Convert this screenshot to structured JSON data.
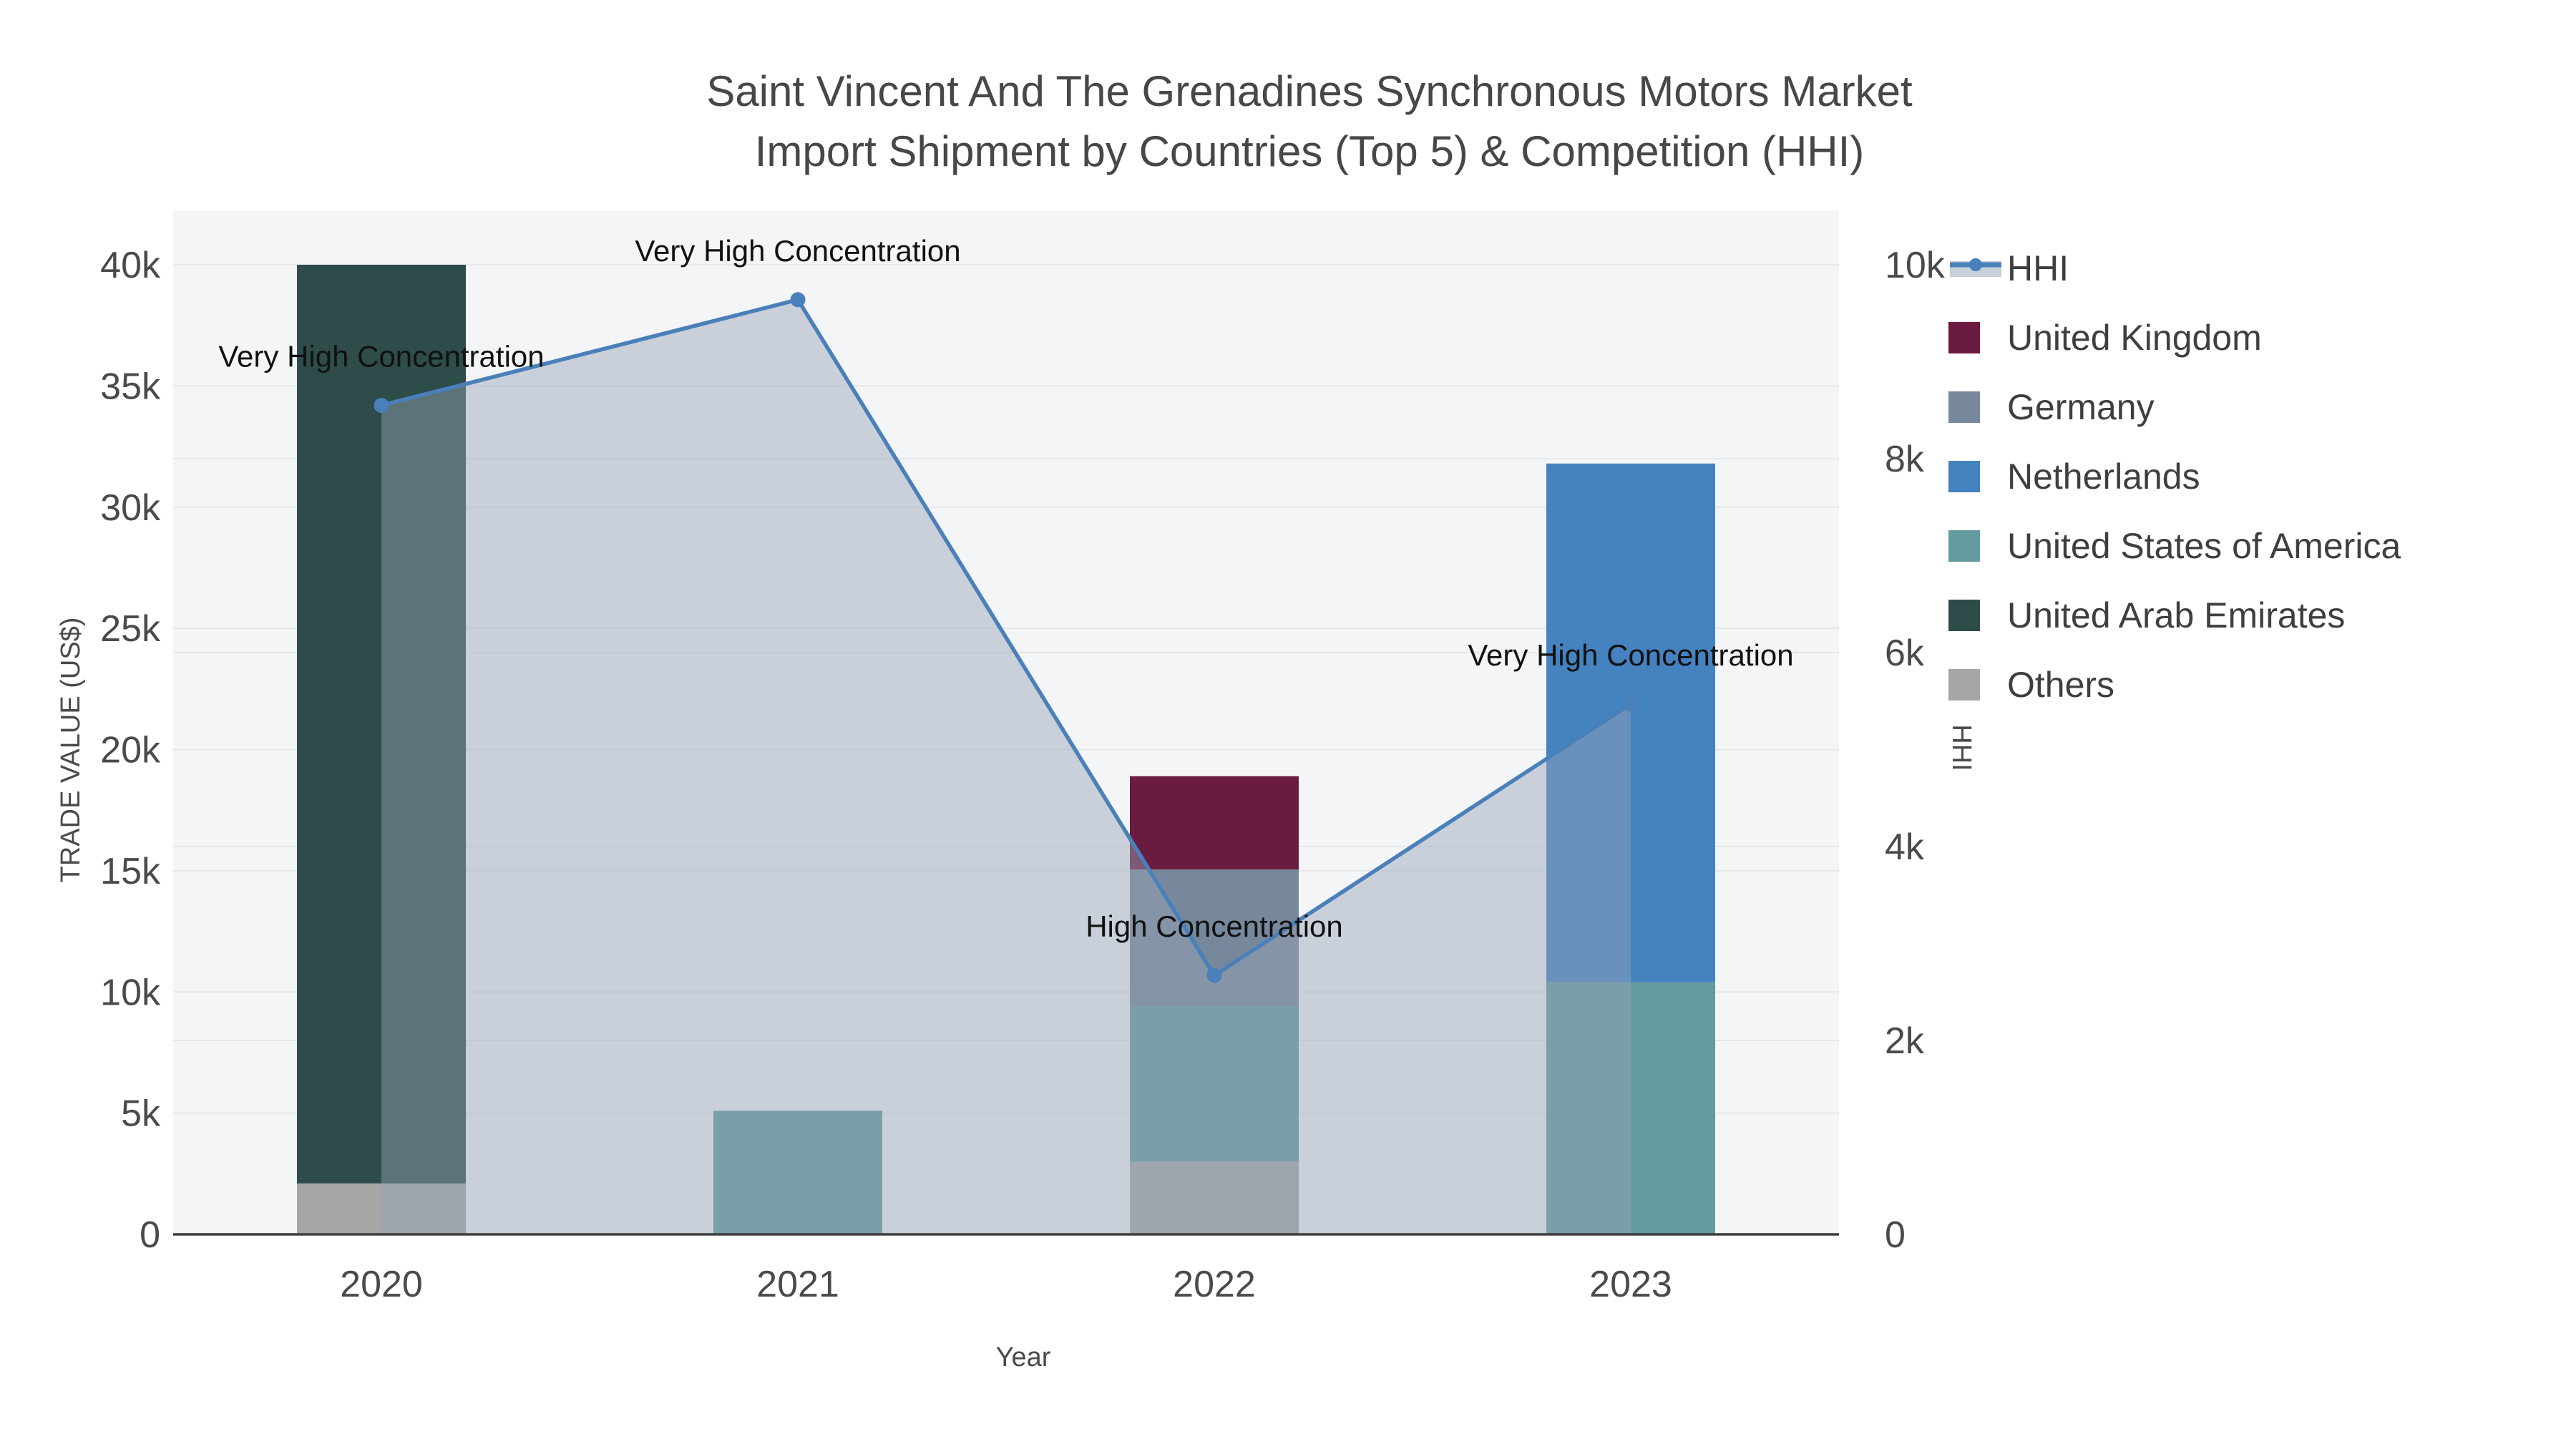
{
  "title": {
    "line1": "Saint Vincent And The Grenadines Synchronous Motors Market",
    "line2": "Import Shipment by Countries (Top 5) & Competition (HHI)"
  },
  "axis_titles": {
    "x": "Year",
    "y_left": "TRADE VALUE (US$)",
    "y_right": "HHI"
  },
  "legend": {
    "items": [
      {
        "label": "HHI",
        "color": "#4a80ba",
        "swatch": "line"
      },
      {
        "label": "United Kingdom",
        "color": "#6a1c40",
        "swatch": "square"
      },
      {
        "label": "Germany",
        "color": "#77889c",
        "swatch": "square"
      },
      {
        "label": "Netherlands",
        "color": "#4582c0",
        "swatch": "square"
      },
      {
        "label": "United States of America",
        "color": "#639b9e",
        "swatch": "square"
      },
      {
        "label": "United Arab Emirates",
        "color": "#2d4c4a",
        "swatch": "square"
      },
      {
        "label": "Others",
        "color": "#a6a6a6",
        "swatch": "square"
      }
    ]
  },
  "chart_data": {
    "type": "combo-stacked-bar-line",
    "title": "Saint Vincent And The Grenadines Synchronous Motors Market Import Shipment by Countries (Top 5) & Competition (HHI)",
    "categories": [
      "2020",
      "2021",
      "2022",
      "2023"
    ],
    "bar_series": [
      {
        "name": "Others",
        "color": "#a6a6a6",
        "values": [
          2100,
          0,
          3000,
          0
        ]
      },
      {
        "name": "United States of America",
        "color": "#639b9e",
        "values": [
          0,
          5100,
          6400,
          10400
        ]
      },
      {
        "name": "Germany",
        "color": "#77889c",
        "values": [
          0,
          0,
          5650,
          0
        ]
      },
      {
        "name": "United Kingdom",
        "color": "#6a1c40",
        "values": [
          0,
          0,
          3850,
          0
        ]
      },
      {
        "name": "Netherlands",
        "color": "#4582c0",
        "values": [
          0,
          0,
          0,
          21400
        ]
      },
      {
        "name": "United Arab Emirates",
        "color": "#2d4c4a",
        "values": [
          37900,
          0,
          0,
          0
        ]
      }
    ],
    "bar_totals": [
      40000,
      5100,
      18900,
      31800
    ],
    "line_series": {
      "name": "HHI",
      "color": "#4a80ba",
      "fill_color": "rgba(150,163,182,0.45)",
      "values": [
        8550,
        9640,
        2670,
        5470
      ],
      "axis": "right"
    },
    "annotations": [
      {
        "x": "2020",
        "text": "Very High Concentration"
      },
      {
        "x": "2021",
        "text": "Very High Concentration"
      },
      {
        "x": "2022",
        "text": "High Concentration"
      },
      {
        "x": "2023",
        "text": "Very High Concentration"
      }
    ],
    "left_axis": {
      "title": "TRADE VALUE (US$)",
      "range": [
        0,
        40000
      ],
      "tick_values": [
        0,
        5000,
        10000,
        15000,
        20000,
        25000,
        30000,
        35000,
        40000
      ],
      "tick_labels": [
        "0",
        "5k",
        "10k",
        "15k",
        "20k",
        "25k",
        "30k",
        "35k",
        "40k"
      ]
    },
    "right_axis": {
      "title": "HHI",
      "range": [
        0,
        10000
      ],
      "tick_values": [
        0,
        2000,
        4000,
        6000,
        8000,
        10000
      ],
      "tick_labels": [
        "0",
        "2k",
        "4k",
        "6k",
        "8k",
        "10k"
      ]
    },
    "x_axis": {
      "title": "Year",
      "tick_labels": [
        "2020",
        "2021",
        "2022",
        "2023"
      ]
    },
    "grid": true,
    "legend_position": "right",
    "plot_bg": "#f4f5f6",
    "grid_color": "#e5e7ea",
    "axis_line_color": "#3f3f3f",
    "tick_color": "#4a4a4a",
    "annotation_color": "#111111"
  }
}
